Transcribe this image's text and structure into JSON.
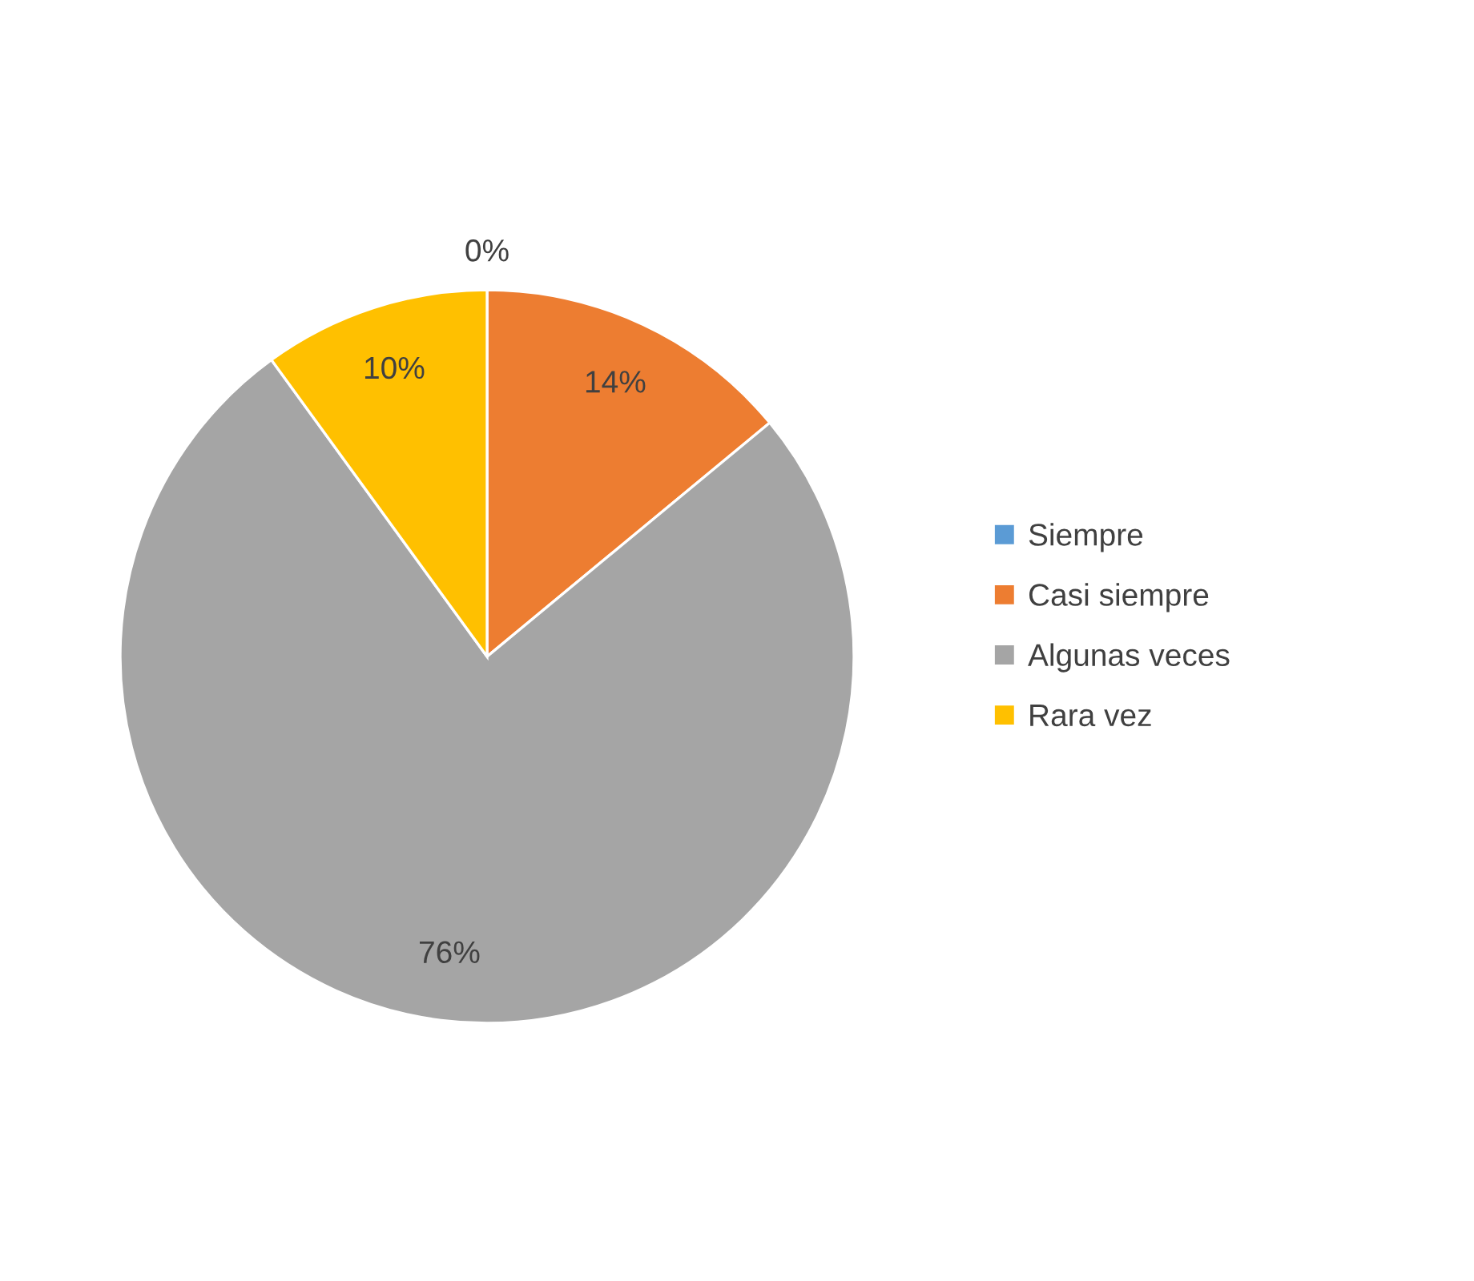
{
  "chart_data": {
    "type": "pie",
    "categories": [
      "Siempre",
      "Casi siempre",
      "Algunas veces",
      "Rara vez"
    ],
    "values": [
      0,
      14,
      76,
      10
    ],
    "colors": [
      "#5b9bd5",
      "#ed7d31",
      "#a5a5a5",
      "#ffc000"
    ],
    "value_labels": [
      "0%",
      "14%",
      "76%",
      "10%"
    ],
    "legend": "right"
  }
}
